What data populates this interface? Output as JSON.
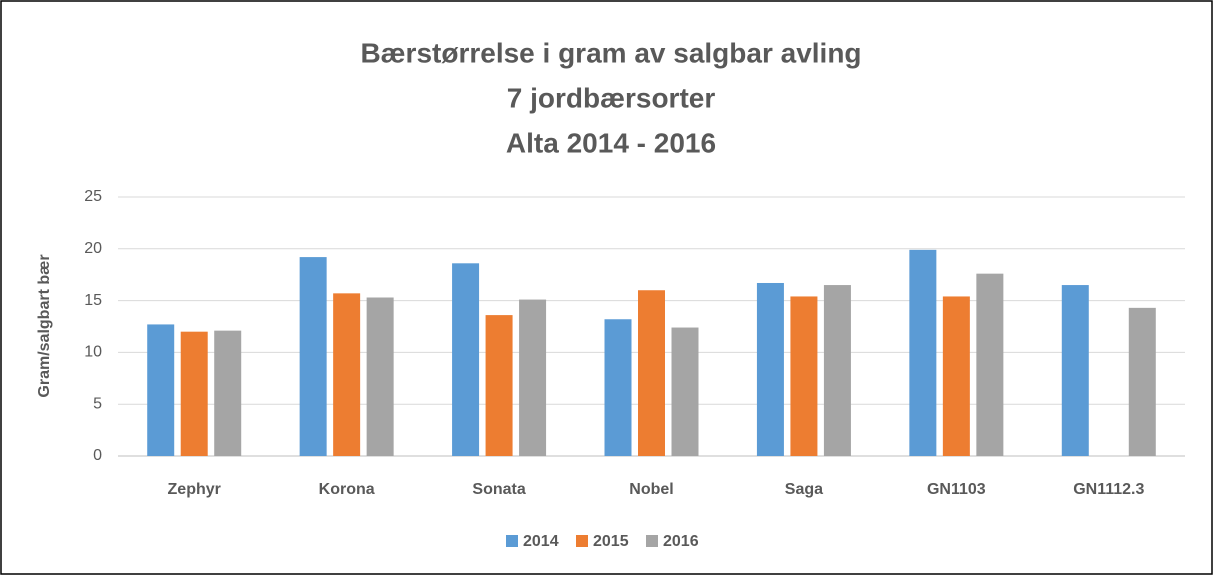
{
  "chart_data": {
    "type": "bar",
    "title": [
      "Bærstørrelse i gram av salgbar avling",
      "7 jordbærsorter",
      "Alta 2014 - 2016"
    ],
    "y_label": "Gram/salgbart bær",
    "categories": [
      "Zephyr",
      "Korona",
      "Sonata",
      "Nobel",
      "Saga",
      "GN1103",
      "GN1112.3"
    ],
    "series": [
      {
        "name": "2014",
        "color": "#5b9bd5",
        "values": [
          12.7,
          19.2,
          18.6,
          13.2,
          16.7,
          19.9,
          16.5
        ]
      },
      {
        "name": "2015",
        "color": "#ed7d31",
        "values": [
          12.0,
          15.7,
          13.6,
          16.0,
          15.4,
          15.4,
          null
        ]
      },
      {
        "name": "2016",
        "color": "#a5a5a5",
        "values": [
          12.1,
          15.3,
          15.1,
          12.4,
          16.5,
          17.6,
          14.3
        ]
      }
    ],
    "ylim": [
      0,
      25
    ],
    "yticks": [
      0,
      5,
      10,
      15,
      20,
      25
    ],
    "grid": true,
    "legend": "bottom"
  }
}
